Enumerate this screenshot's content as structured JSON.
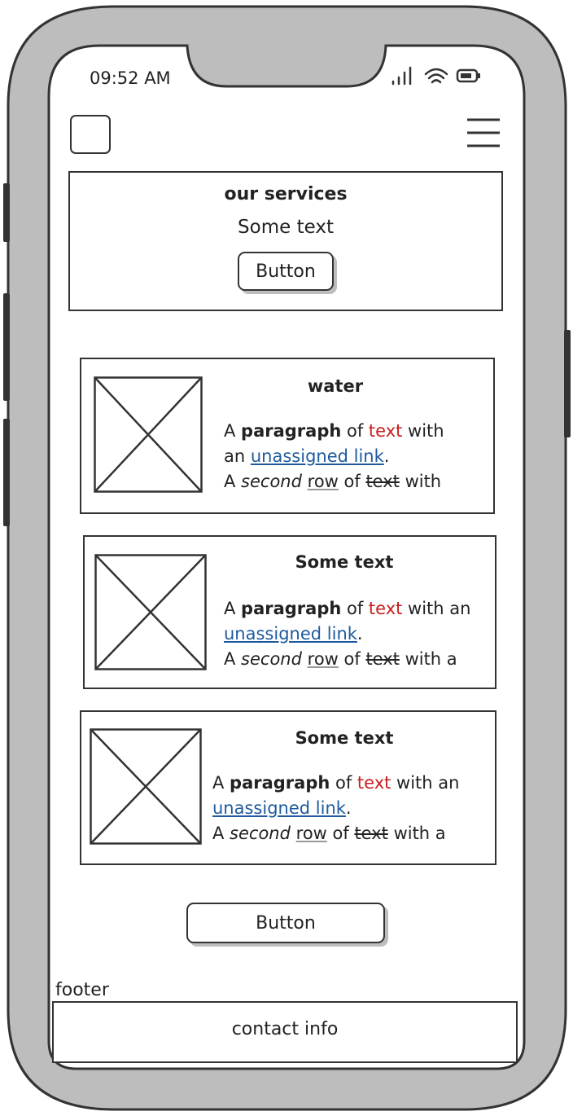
{
  "status_bar": {
    "time": "09:52 AM",
    "icons": [
      "signal-icon",
      "wifi-icon",
      "battery-icon"
    ]
  },
  "header": {
    "logo_icon": "logo-placeholder-icon",
    "menu_icon": "hamburger-menu-icon"
  },
  "services": {
    "title": "our services",
    "text": "Some text",
    "button_label": "Button"
  },
  "cards": [
    {
      "title": "water",
      "image_icon": "image-placeholder-icon",
      "line1": {
        "a": "A ",
        "bold": "paragraph",
        "of": " of ",
        "red": "text",
        "tail": " with"
      },
      "line2": {
        "pre": "an ",
        "link": "unassigned link",
        "dot": "."
      },
      "line3": {
        "a": "A ",
        "italic": "second",
        "sp": " ",
        "under": "row",
        "of": " of ",
        "strike": "text",
        "tail": " with"
      }
    },
    {
      "title": "Some text",
      "image_icon": "image-placeholder-icon",
      "line1": {
        "a": "A ",
        "bold": "paragraph",
        "of": " of ",
        "red": "text",
        "tail": " with an"
      },
      "line2": {
        "pre": "",
        "link": "unassigned link",
        "dot": "."
      },
      "line3": {
        "a": "A ",
        "italic": "second",
        "sp": " ",
        "under": "row",
        "of": " of ",
        "strike": "text",
        "tail": " with a"
      }
    },
    {
      "title": "Some text",
      "image_icon": "image-placeholder-icon",
      "line1": {
        "a": "A ",
        "bold": "paragraph",
        "of": " of ",
        "red": "text",
        "tail": " with an"
      },
      "line2": {
        "pre": "",
        "link": "unassigned link",
        "dot": "."
      },
      "line3": {
        "a": "A ",
        "italic": "second",
        "sp": " ",
        "under": "row",
        "of": " of ",
        "strike": "text",
        "tail": " with a"
      }
    }
  ],
  "main_button_label": "Button",
  "footer": {
    "label": "footer",
    "contact": "contact info"
  },
  "colors": {
    "frame": "#bdbdbd",
    "outline": "#333333",
    "red_text": "#c81e1e",
    "link": "#1e5a9e"
  }
}
